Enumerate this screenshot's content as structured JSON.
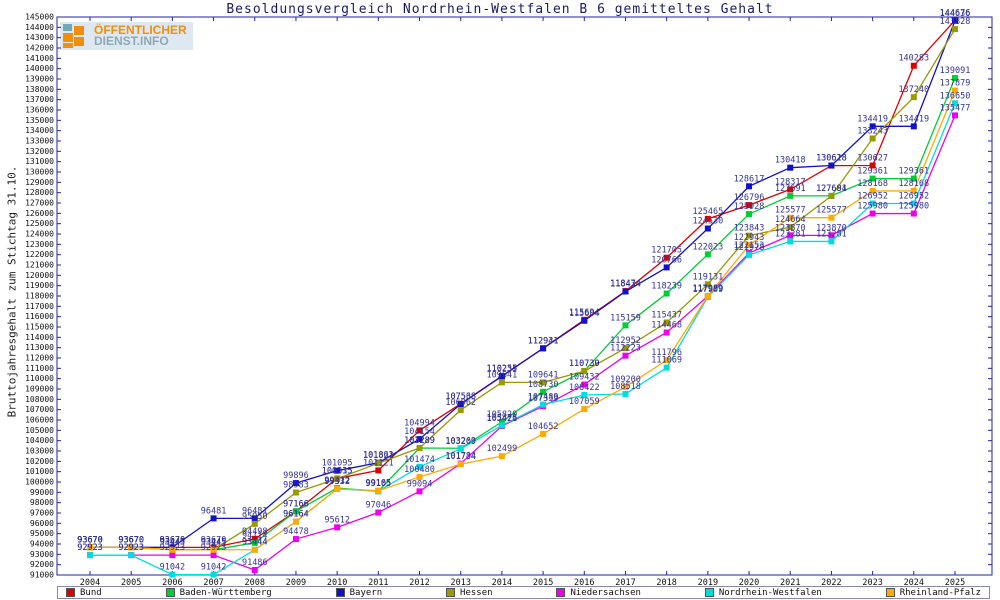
{
  "title": "Besoldungsvergleich Nordrhein-Westfalen B 6 gemitteltes Gehalt",
  "ylabel": "Bruttojahresgehalt zum Stichtag 31.10.",
  "logo": {
    "icon": "grid-squares-icon",
    "line1": "ÖFFENTLICHER",
    "line2": "DIENST.INFO"
  },
  "colors": {
    "frame": "#2222aa",
    "tick_text": "#111111",
    "data_label_text": "#333399",
    "title_text": "#1a1a66",
    "background": "#ffffff"
  },
  "chart_data": {
    "type": "line",
    "title": "Besoldungsvergleich Nordrhein-Westfalen B 6 gemitteltes Gehalt",
    "xlabel": "",
    "ylabel": "Bruttojahresgehalt zum Stichtag 31.10.",
    "ylim": [
      91000,
      145000
    ],
    "ytick_step": 1000,
    "grid": false,
    "legend_position": "bottom",
    "x": [
      2004,
      2005,
      2006,
      2007,
      2008,
      2009,
      2010,
      2011,
      2012,
      2013,
      2014,
      2015,
      2016,
      2017,
      2018,
      2019,
      2020,
      2021,
      2022,
      2023,
      2024,
      2025
    ],
    "series": [
      {
        "name": "Bund",
        "color": "#dd0000",
        "values": [
          93670,
          93670,
          93670,
          93670,
          94498,
          97166,
          100335,
          101121,
          104994,
          107568,
          110255,
          112941,
          115694,
          118474,
          121705,
          125465,
          126796,
          128317,
          130618,
          130627,
          140283,
          144676
        ]
      },
      {
        "name": "Baden-Württemberg",
        "color": "#00cc33",
        "values": [
          93670,
          93670,
          93445,
          93445,
          94114,
          97166,
          99412,
          99105,
          103289,
          103263,
          105820,
          108730,
          110739,
          115159,
          118239,
          122023,
          125928,
          127691,
          127691,
          129361,
          129361,
          139091
        ]
      },
      {
        "name": "Bayern",
        "color": "#1111cc",
        "values": [
          93670,
          93670,
          93670,
          96481,
          96481,
          99896,
          101095,
          101863,
          104154,
          107538,
          110231,
          112931,
          115604,
          118434,
          120766,
          124530,
          128617,
          130418,
          130628,
          134419,
          134419,
          144636
        ]
      },
      {
        "name": "Hessen",
        "color": "#999900",
        "values": [
          93670,
          93670,
          93445,
          93445,
          95950,
          98983,
          100315,
          101821,
          103289,
          106962,
          109641,
          109641,
          110730,
          112952,
          115437,
          119131,
          123843,
          124664,
          127684,
          133243,
          137240,
          143828
        ]
      },
      {
        "name": "Niedersachsen",
        "color": "#ee00ee",
        "values": [
          92923,
          92923,
          92923,
          92923,
          91486,
          94478,
          95612,
          97046,
          99094,
          101784,
          105421,
          107339,
          109432,
          112223,
          114468,
          117989,
          122153,
          123870,
          123870,
          125980,
          125980,
          135477
        ]
      },
      {
        "name": "Nordrhein-Westfalen",
        "color": "#00dddd",
        "values": [
          92923,
          92923,
          91042,
          91042,
          93444,
          96164,
          99332,
          99105,
          101474,
          103209,
          105476,
          107489,
          108422,
          108518,
          111069,
          117909,
          121978,
          123281,
          123281,
          126952,
          126952,
          136650
        ]
      },
      {
        "name": "Rheinland-Pfalz",
        "color": "#ffaa00",
        "values": [
          93670,
          93670,
          93445,
          93445,
          93444,
          96164,
          99332,
          99165,
          100480,
          101734,
          102499,
          104652,
          107059,
          109200,
          111796,
          117989,
          122943,
          125577,
          125577,
          128168,
          128168,
          137879
        ]
      }
    ]
  }
}
